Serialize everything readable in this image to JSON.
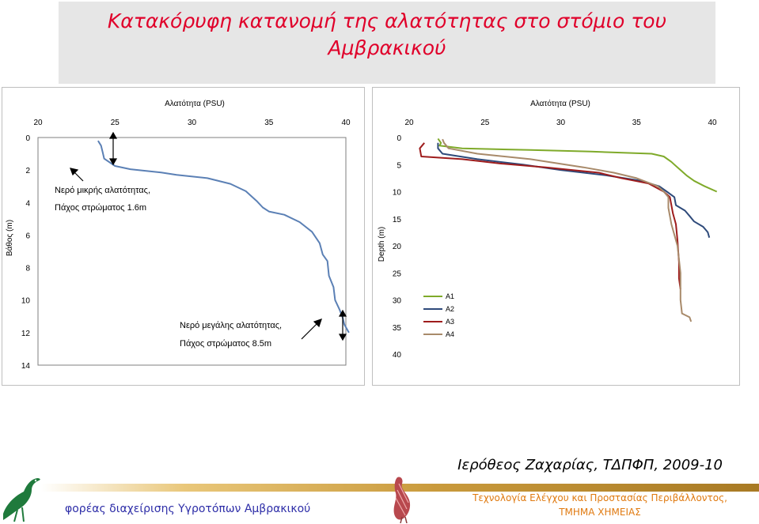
{
  "title": {
    "line1": "Κατακόρυφη κατανομή της αλατότητας στο στόμιο του",
    "line2": "Αμβρακικού"
  },
  "chart_data": [
    {
      "type": "line",
      "title": "",
      "xlabel": "Αλατότητα (PSU)",
      "ylabel": "Βάθος (m)",
      "xlim": [
        20,
        40
      ],
      "ylim": [
        0,
        14
      ],
      "xticks": [
        "20",
        "25",
        "30",
        "35",
        "40"
      ],
      "yticks": [
        "0",
        "2",
        "4",
        "6",
        "8",
        "10",
        "12",
        "14"
      ],
      "y_inverted": true,
      "x_axis_position": "top",
      "grid": false,
      "series": [
        {
          "color": "#5b80b5",
          "points": [
            [
              23.9,
              0.2
            ],
            [
              24.1,
              0.5
            ],
            [
              24.2,
              0.9
            ],
            [
              24.3,
              1.3
            ],
            [
              25,
              1.75
            ],
            [
              26,
              1.95
            ],
            [
              28,
              2.15
            ],
            [
              29,
              2.3
            ],
            [
              31,
              2.5
            ],
            [
              32.5,
              2.85
            ],
            [
              33.5,
              3.3
            ],
            [
              34.2,
              3.9
            ],
            [
              34.6,
              4.3
            ],
            [
              35,
              4.55
            ],
            [
              36,
              4.75
            ],
            [
              37,
              5.2
            ],
            [
              37.8,
              5.8
            ],
            [
              38.3,
              6.5
            ],
            [
              38.5,
              7.2
            ],
            [
              38.8,
              7.6
            ],
            [
              38.9,
              8.5
            ],
            [
              39.2,
              9.2
            ],
            [
              39.3,
              10
            ],
            [
              39.6,
              10.6
            ],
            [
              39.8,
              11.1
            ],
            [
              39.9,
              11.5
            ],
            [
              40.2,
              12
            ]
          ]
        }
      ],
      "annotations": [
        {
          "line1": "Νερό μικρής αλατότητας,",
          "line2": "Πάχος στρώματος 1.6m"
        },
        {
          "line1": "Νερό μεγάλης αλατότητας,",
          "line2": "Πάχος στρώματος 8.5m"
        }
      ]
    },
    {
      "type": "line",
      "title": "",
      "xlabel": "Αλατότητα (PSU)",
      "ylabel": "Depth (m)",
      "xlim": [
        20,
        40
      ],
      "ylim": [
        0,
        40
      ],
      "xticks": [
        "20",
        "25",
        "30",
        "35",
        "40"
      ],
      "yticks": [
        "0",
        "5",
        "10",
        "15",
        "20",
        "25",
        "30",
        "35",
        "40"
      ],
      "y_inverted": true,
      "x_axis_position": "top",
      "grid": false,
      "legend_position": "bottom-left",
      "series": [
        {
          "name": "A1",
          "color": "#7faa2a",
          "points": [
            [
              21.9,
              0.2
            ],
            [
              22.1,
              1
            ],
            [
              22,
              1.5
            ],
            [
              23.5,
              2
            ],
            [
              28,
              2.3
            ],
            [
              32,
              2.6
            ],
            [
              36,
              3
            ],
            [
              36.8,
              3.5
            ],
            [
              37.3,
              4.5
            ],
            [
              37.5,
              5
            ],
            [
              37.9,
              6
            ],
            [
              38.3,
              7
            ],
            [
              38.8,
              8
            ],
            [
              39.5,
              9
            ],
            [
              40.3,
              10
            ]
          ]
        },
        {
          "name": "A2",
          "color": "#2e4a7a",
          "points": [
            [
              21.9,
              1
            ],
            [
              21.9,
              2
            ],
            [
              22.2,
              3
            ],
            [
              24.5,
              4
            ],
            [
              27.5,
              5
            ],
            [
              30,
              6
            ],
            [
              33,
              7
            ],
            [
              35.3,
              8
            ],
            [
              36.5,
              9
            ],
            [
              37,
              10
            ],
            [
              37.5,
              11
            ],
            [
              37.6,
              12.5
            ],
            [
              38.2,
              13.5
            ],
            [
              38.5,
              14.5
            ],
            [
              38.8,
              15.5
            ],
            [
              39.4,
              16.5
            ],
            [
              39.7,
              17.5
            ],
            [
              39.8,
              18.5
            ]
          ]
        },
        {
          "name": "A3",
          "color": "#9e1c1c",
          "points": [
            [
              21,
              1
            ],
            [
              20.7,
              2
            ],
            [
              20.8,
              3.5
            ],
            [
              23.5,
              4
            ],
            [
              26,
              4.8
            ],
            [
              29,
              5.5
            ],
            [
              32.5,
              6.5
            ],
            [
              34,
              7.5
            ],
            [
              35.8,
              8.5
            ],
            [
              36.8,
              10
            ],
            [
              37.2,
              11
            ],
            [
              37.3,
              12.5
            ],
            [
              37.4,
              14
            ],
            [
              37.6,
              16
            ],
            [
              37.7,
              19
            ],
            [
              37.8,
              23
            ],
            [
              37.8,
              26
            ],
            [
              37.9,
              28
            ]
          ]
        },
        {
          "name": "A4",
          "color": "#a88a6a",
          "points": [
            [
              22.2,
              0.3
            ],
            [
              22.3,
              1
            ],
            [
              22.6,
              2
            ],
            [
              24.5,
              3
            ],
            [
              28,
              4
            ],
            [
              31.5,
              5.5
            ],
            [
              33.5,
              6.5
            ],
            [
              35,
              7.5
            ],
            [
              36.4,
              9
            ],
            [
              36.8,
              10
            ],
            [
              37.1,
              11
            ],
            [
              37.1,
              13
            ],
            [
              37.3,
              16
            ],
            [
              37.7,
              20
            ],
            [
              37.9,
              25
            ],
            [
              37.9,
              30
            ],
            [
              38,
              32.5
            ],
            [
              38.5,
              33.2
            ],
            [
              38.6,
              34
            ]
          ]
        }
      ]
    }
  ],
  "author": "Ιερόθεος Ζαχαρίας, ΤΔΠΦΠ, 2009-10",
  "footer": {
    "left": "φορέας διαχείρισης Υγροτόπων Αμβρακικού",
    "right_line1": "Τεχνολογία Ελέγχου και Προστασίας Περιβάλλοντος,",
    "right_line2": "ΤΜΗΜΑ ΧΗΜΕΙΑΣ"
  },
  "colors": {
    "title": "#e0002a",
    "footer_left": "#2e2ea8",
    "footer_right": "#e07a10"
  },
  "icons": [
    "bird-logo-icon",
    "heron-logo-icon"
  ]
}
